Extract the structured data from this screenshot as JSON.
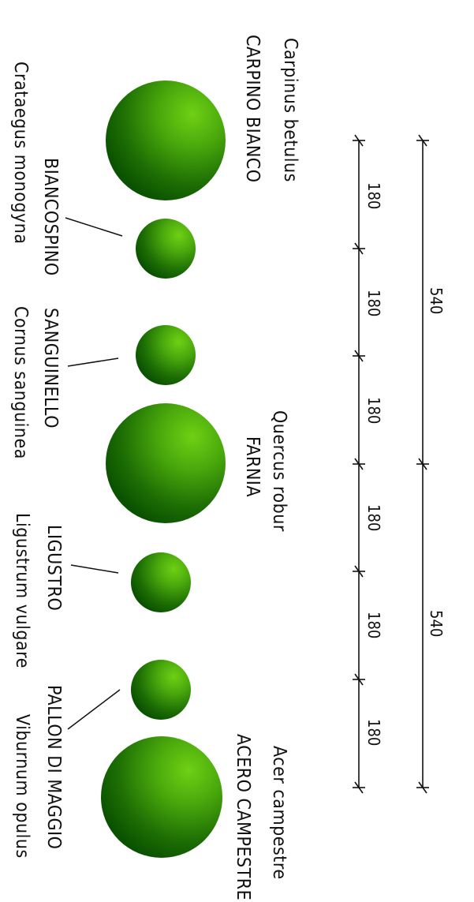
{
  "colors": {
    "foliage_dark": "#0b5200",
    "foliage_light": "#66cc11",
    "ink": "#111111"
  },
  "dimensions": {
    "overall": [
      "540",
      "540"
    ],
    "spacing": [
      "180",
      "180",
      "180",
      "180",
      "180",
      "180"
    ]
  },
  "plants": [
    {
      "latin": "Carpinus  betulus",
      "common": "CARPINO  BIANCO"
    },
    {
      "latin": "Crataegus  monogyna",
      "common": "BIANCOSPINO"
    },
    {
      "latin": "Cornus  sanguinea",
      "common": "SANGUINELLO"
    },
    {
      "latin": "Quercus  robur",
      "common": "FARNIA"
    },
    {
      "latin": "Ligustrum  vulgare",
      "common": "LIGUSTRO"
    },
    {
      "latin": "Viburnum  opulus",
      "common": "PALLON  DI  MAGGIO"
    },
    {
      "latin": "Acer  campestre",
      "common": "ACERO  CAMPESTRE"
    }
  ]
}
